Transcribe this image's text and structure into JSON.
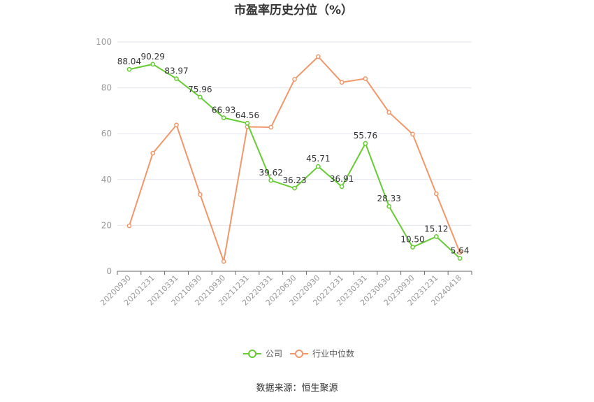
{
  "chart_data": {
    "type": "line",
    "title": "市盈率历史分位（%）",
    "categories": [
      "20200930",
      "20201231",
      "20210331",
      "20210630",
      "20210930",
      "20211231",
      "20220331",
      "20220630",
      "20220930",
      "20221231",
      "20230331",
      "20230630",
      "20230930",
      "20231231",
      "20240418"
    ],
    "series": [
      {
        "name": "公司",
        "color": "#66cc33",
        "values": [
          88.04,
          90.29,
          83.97,
          75.96,
          66.93,
          64.56,
          39.62,
          36.23,
          45.71,
          36.91,
          55.76,
          28.33,
          10.5,
          15.12,
          5.64
        ],
        "labels": [
          "88.04",
          "90.29",
          "83.97",
          "75.96",
          "66.93",
          "64.56",
          "39.62",
          "36.23",
          "45.71",
          "36.91",
          "55.76",
          "28.33",
          "10.50",
          "15.12",
          "5.64"
        ]
      },
      {
        "name": "行业中位数",
        "color": "#f2976b",
        "values": [
          19.8,
          51.5,
          63.8,
          33.5,
          4.3,
          63.0,
          62.8,
          83.7,
          93.6,
          82.4,
          84.0,
          69.3,
          59.8,
          33.8,
          8.2
        ]
      }
    ],
    "yticks": [
      "0",
      "20",
      "40",
      "60",
      "80",
      "100"
    ],
    "ylim": [
      0,
      100
    ],
    "grid": true,
    "legend": "bottom"
  },
  "source": "数据来源：恒生聚源"
}
